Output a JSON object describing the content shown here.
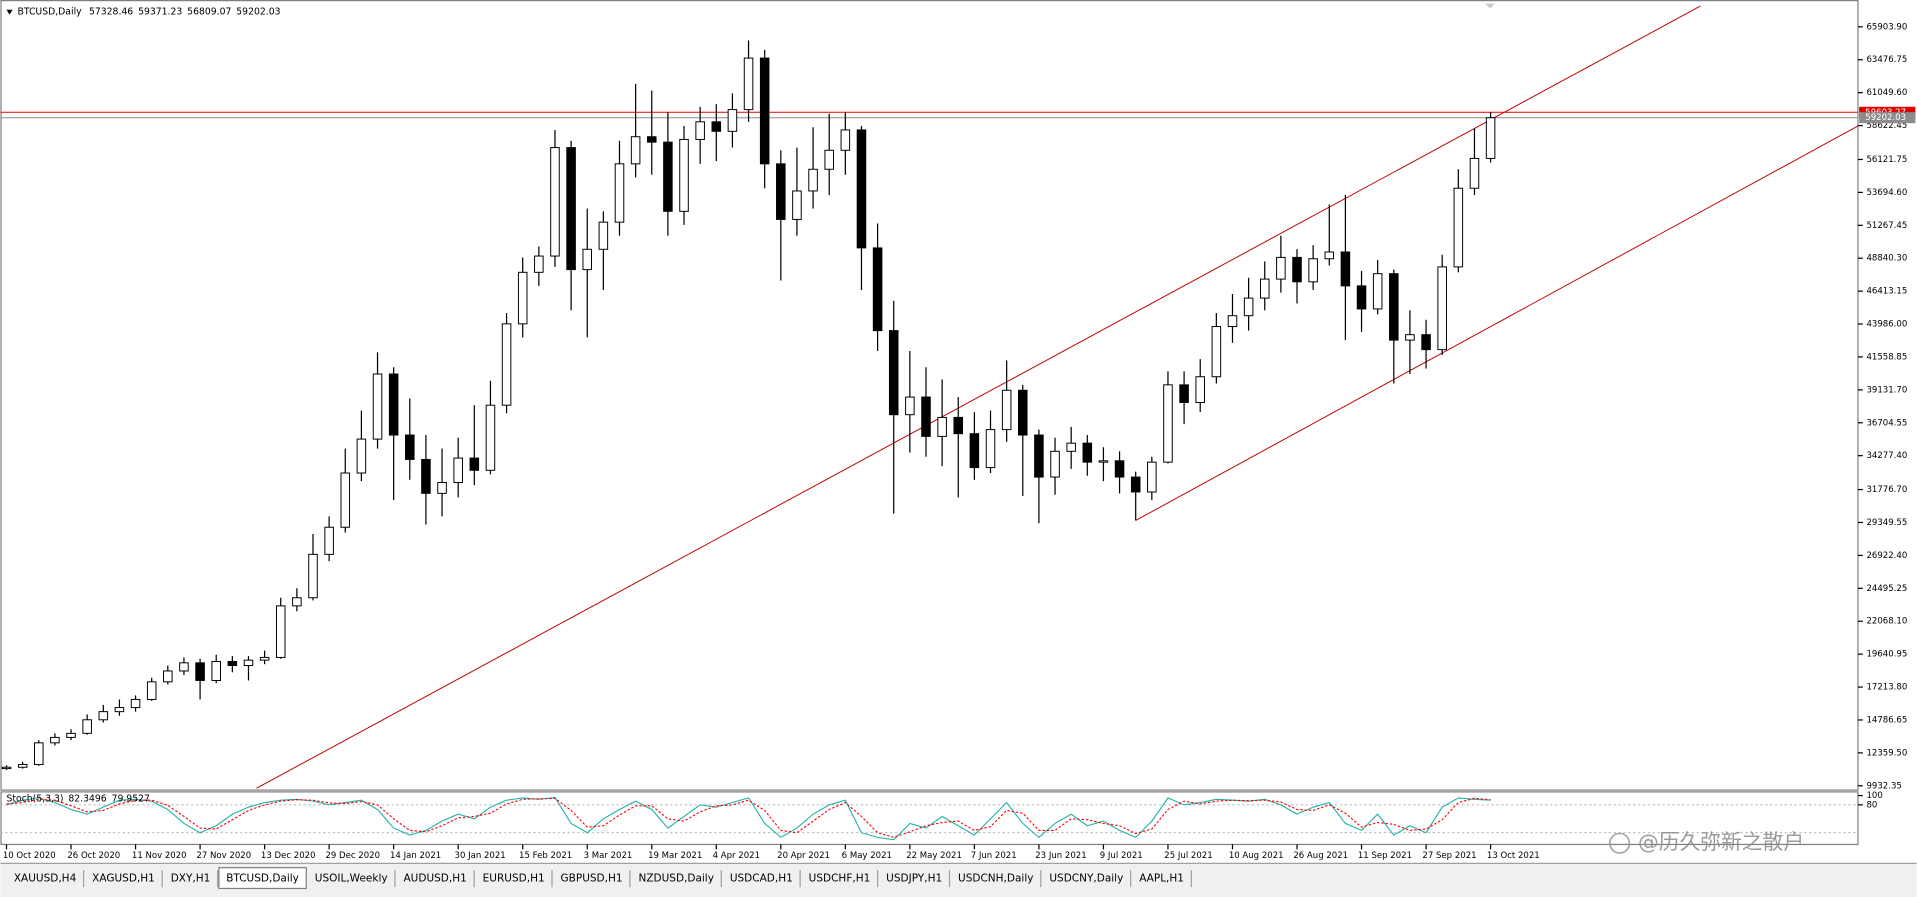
{
  "chart_data": [
    {
      "type": "candlestick",
      "title": "BTCUSD,Daily",
      "ohlc_header": [
        57328.46,
        59371.23,
        56809.07,
        59202.03
      ],
      "categories": [
        "10 Oct 2020",
        null,
        null,
        null,
        "26 Oct 2020",
        null,
        null,
        null,
        "11 Nov 2020",
        null,
        null,
        null,
        "27 Nov 2020",
        null,
        null,
        null,
        "13 Dec 2020",
        null,
        null,
        null,
        "29 Dec 2020",
        null,
        null,
        null,
        "14 Jan 2021",
        null,
        null,
        null,
        "30 Jan 2021",
        null,
        null,
        null,
        "15 Feb 2021",
        null,
        null,
        null,
        "3 Mar 2021",
        null,
        null,
        null,
        "19 Mar 2021",
        null,
        null,
        null,
        "4 Apr 2021",
        null,
        null,
        null,
        "20 Apr 2021",
        null,
        null,
        null,
        "6 May 2021",
        null,
        null,
        null,
        "22 May 2021",
        null,
        null,
        null,
        "7 Jun 2021",
        null,
        null,
        null,
        "23 Jun 2021",
        null,
        null,
        null,
        "9 Jul 2021",
        null,
        null,
        null,
        "25 Jul 2021",
        null,
        null,
        null,
        "10 Aug 2021",
        null,
        null,
        null,
        "26 Aug 2021",
        null,
        null,
        null,
        "11 Sep 2021",
        null,
        null,
        null,
        "27 Sep 2021",
        null,
        null,
        null,
        "13 Oct 2021"
      ],
      "open": [
        11200,
        11300,
        11500,
        13100,
        13500,
        13800,
        14800,
        15400,
        15700,
        16300,
        17600,
        18400,
        19000,
        17700,
        19100,
        18800,
        19200,
        19400,
        23200,
        23800,
        27000,
        29000,
        33000,
        35500,
        40300,
        35800,
        34000,
        31500,
        32300,
        34100,
        33200,
        38000,
        44000,
        47800,
        49000,
        57000,
        48000,
        49500,
        51500,
        55800,
        57800,
        57400,
        52300,
        57600,
        58900,
        58200,
        59800,
        63600,
        55800,
        51700,
        53800,
        55400,
        56800,
        58300,
        49600,
        43500,
        37300,
        38600,
        35700,
        37100,
        35900,
        33400,
        36200,
        39100,
        35800,
        32700,
        34600,
        35200,
        33800,
        33900,
        32700,
        31600,
        33800,
        39500,
        38200,
        40100,
        43800,
        44600,
        45900,
        47300,
        48900,
        47100,
        48800,
        49300,
        46800,
        45100,
        47700,
        42800,
        43200,
        42100,
        48200,
        54000,
        56200
      ],
      "high": [
        11450,
        11700,
        13300,
        13800,
        14100,
        15200,
        15900,
        16300,
        16600,
        17900,
        18800,
        19400,
        19300,
        19600,
        19500,
        19500,
        19900,
        23800,
        24500,
        28500,
        29800,
        34800,
        37600,
        41900,
        40800,
        38500,
        35800,
        34800,
        35600,
        38000,
        39800,
        44800,
        48900,
        49700,
        58300,
        57500,
        52500,
        52300,
        57500,
        61700,
        61200,
        59600,
        58600,
        60000,
        60200,
        61000,
        64900,
        64200,
        56800,
        57000,
        58500,
        59500,
        59600,
        58600,
        51400,
        45700,
        42000,
        40800,
        39900,
        38600,
        37500,
        37600,
        41300,
        39500,
        36200,
        35600,
        36400,
        35800,
        34900,
        34600,
        33100,
        34200,
        40500,
        40500,
        41400,
        44800,
        46200,
        47400,
        48600,
        50500,
        49500,
        49800,
        52800,
        53500,
        47900,
        48700,
        48000,
        45000,
        44300,
        49100,
        55400,
        58400,
        59600
      ],
      "low": [
        11100,
        11200,
        11400,
        12900,
        13300,
        13700,
        14600,
        15100,
        15400,
        16200,
        17400,
        18100,
        16300,
        17500,
        18300,
        17700,
        18900,
        19300,
        22800,
        23600,
        26500,
        28600,
        32400,
        34800,
        31000,
        32500,
        29200,
        29800,
        31200,
        32100,
        32900,
        37400,
        43000,
        46800,
        48200,
        45000,
        43000,
        46500,
        50500,
        54800,
        55000,
        50500,
        51300,
        55800,
        56000,
        57000,
        58900,
        54000,
        47200,
        50500,
        52500,
        53500,
        55000,
        46500,
        42000,
        30000,
        34500,
        34200,
        33500,
        31200,
        32500,
        33000,
        35300,
        31300,
        29300,
        31400,
        33300,
        32800,
        32400,
        31500,
        29500,
        31000,
        33700,
        36600,
        37500,
        39600,
        42600,
        43500,
        45000,
        46300,
        45500,
        46500,
        48300,
        42800,
        43400,
        44700,
        39600,
        40300,
        40700,
        41700,
        47800,
        53500,
        55900
      ],
      "close": [
        11300,
        11500,
        13100,
        13500,
        13800,
        14800,
        15400,
        15700,
        16300,
        17600,
        18400,
        19000,
        17700,
        19100,
        18800,
        19200,
        19400,
        23200,
        23800,
        27000,
        29000,
        33000,
        35500,
        40300,
        35800,
        34000,
        31500,
        32300,
        34100,
        33200,
        38000,
        44000,
        47800,
        49000,
        57000,
        48000,
        49500,
        51500,
        55800,
        57800,
        57400,
        52300,
        57600,
        58900,
        58200,
        59800,
        63600,
        55800,
        51700,
        53800,
        55400,
        56800,
        58300,
        49600,
        43500,
        37300,
        38600,
        35700,
        37100,
        35900,
        33400,
        36200,
        39100,
        35800,
        32700,
        34600,
        35200,
        33800,
        33900,
        32700,
        31600,
        33800,
        39500,
        38200,
        40100,
        43800,
        44600,
        45900,
        47300,
        48900,
        47100,
        48800,
        49300,
        46800,
        45100,
        47700,
        42800,
        43200,
        42100,
        48200,
        54000,
        56200,
        59200
      ],
      "ylim": [
        9752,
        67432
      ],
      "yticks": [
        {
          "value": 65903.9,
          "label": "65903.90"
        },
        {
          "value": 63476.75,
          "label": "63476.75"
        },
        {
          "value": 61049.6,
          "label": "61049.60"
        },
        {
          "value": 58622.45,
          "label": "58622.45"
        },
        {
          "value": 56121.75,
          "label": "56121.75"
        },
        {
          "value": 53694.6,
          "label": "53694.60"
        },
        {
          "value": 51267.45,
          "label": "51267.45"
        },
        {
          "value": 48840.3,
          "label": "48840.30"
        },
        {
          "value": 46413.15,
          "label": "46413.15"
        },
        {
          "value": 43986,
          "label": "43986.00"
        },
        {
          "value": 41558.85,
          "label": "41558.85"
        },
        {
          "value": 39131.7,
          "label": "39131.70"
        },
        {
          "value": 36704.55,
          "label": "36704.55"
        },
        {
          "value": 34277.4,
          "label": "34277.40"
        },
        {
          "value": 31776.7,
          "label": "31776.70"
        },
        {
          "value": 29349.55,
          "label": "29349.55"
        },
        {
          "value": 26922.4,
          "label": "26922.40"
        },
        {
          "value": 24495.25,
          "label": "24495.25"
        },
        {
          "value": 22068.1,
          "label": "22068.10"
        },
        {
          "value": 19640.95,
          "label": "19640.95"
        },
        {
          "value": 17213.8,
          "label": "17213.80"
        },
        {
          "value": 14786.65,
          "label": "14786.65"
        },
        {
          "value": 12359.5,
          "label": "12359.50"
        },
        {
          "value": 9932.35,
          "label": "9932.35"
        }
      ],
      "trendlines": [
        {
          "color": "#c00000",
          "points": [
            [
              15.5,
              9752
            ],
            [
              105,
              67432
            ]
          ]
        },
        {
          "color": "#c00000",
          "points": [
            [
              70,
              29500
            ],
            [
              115.2,
              58870
            ]
          ]
        }
      ],
      "price_lines": [
        {
          "value": 59603.27,
          "color": "#e00000"
        },
        {
          "value": 59202.03,
          "color": "#8c8c8c"
        }
      ],
      "up_color": "#ffffff",
      "down_color": "#000000"
    },
    {
      "type": "line",
      "title": "Stoch(5,3,3)",
      "header_values": [
        82.3496,
        79.9527
      ],
      "ylim": [
        0,
        100
      ],
      "yticks": [
        100,
        80
      ],
      "levels": [
        80,
        20
      ],
      "series": [
        {
          "color": "#20b2aa",
          "values": [
            80,
            90,
            95,
            85,
            70,
            60,
            75,
            90,
            92,
            88,
            70,
            40,
            20,
            35,
            60,
            75,
            85,
            90,
            92,
            88,
            80,
            85,
            90,
            70,
            30,
            15,
            25,
            45,
            60,
            50,
            75,
            90,
            95,
            92,
            96,
            40,
            20,
            50,
            70,
            88,
            70,
            30,
            55,
            80,
            75,
            85,
            95,
            40,
            10,
            30,
            60,
            80,
            90,
            20,
            10,
            5,
            40,
            30,
            55,
            35,
            15,
            50,
            85,
            40,
            10,
            40,
            60,
            35,
            45,
            25,
            10,
            45,
            95,
            80,
            85,
            92,
            90,
            88,
            92,
            80,
            60,
            75,
            85,
            40,
            25,
            60,
            15,
            35,
            20,
            75,
            95,
            92,
            90
          ]
        },
        {
          "color": "#ff0000",
          "dashed": true,
          "values": [
            82,
            85,
            92,
            90,
            78,
            65,
            68,
            82,
            90,
            90,
            79,
            55,
            30,
            28,
            48,
            68,
            80,
            88,
            91,
            90,
            84,
            83,
            87,
            80,
            50,
            25,
            22,
            35,
            52,
            55,
            62,
            82,
            92,
            93,
            94,
            68,
            32,
            35,
            58,
            78,
            78,
            50,
            45,
            65,
            78,
            80,
            90,
            68,
            25,
            20,
            45,
            70,
            85,
            55,
            20,
            10,
            22,
            35,
            42,
            45,
            25,
            33,
            68,
            62,
            25,
            25,
            50,
            48,
            40,
            35,
            18,
            28,
            70,
            88,
            82,
            88,
            90,
            89,
            90,
            86,
            70,
            68,
            80,
            62,
            32,
            42,
            38,
            25,
            28,
            48,
            85,
            94,
            91
          ]
        }
      ]
    }
  ],
  "tabs": {
    "items": [
      "XAUUSD,H4",
      "XAGUSD,H1",
      "DXY,H1",
      "BTCUSD,Daily",
      "USOIL,Weekly",
      "AUDUSD,H1",
      "EURUSD,H1",
      "GBPUSD,H1",
      "NZDUSD,Daily",
      "USDCAD,H1",
      "USDCHF,H1",
      "USDJPY,H1",
      "USDCNH,Daily",
      "USDCNY,Daily",
      "AAPL,H1"
    ],
    "active": 3
  },
  "watermark": "@历久弥新之散户"
}
